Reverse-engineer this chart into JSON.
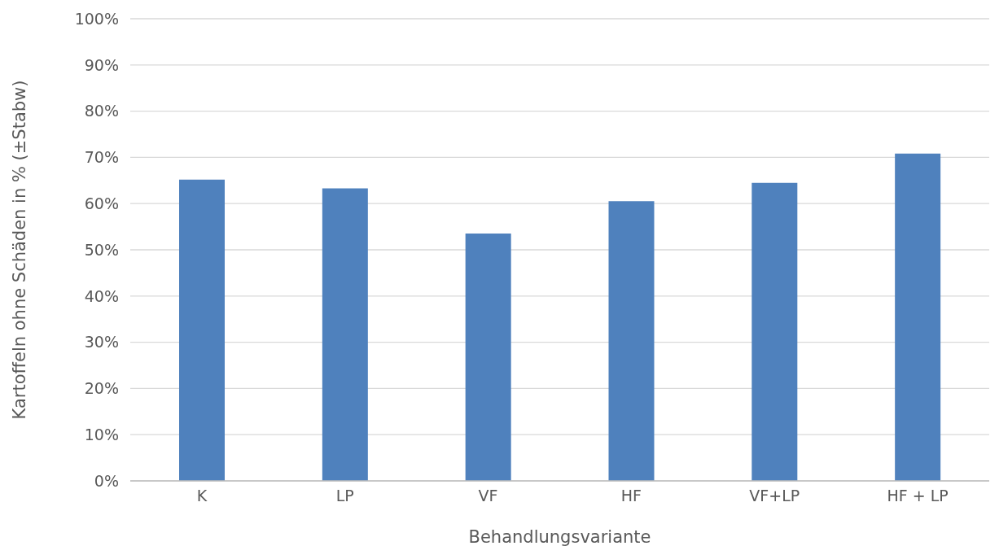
{
  "chart_data": {
    "type": "bar",
    "xlabel": "Behandlungsvariante",
    "ylabel": "Kartoffeln ohne Schäden in % (±Stabw)",
    "categories": [
      "K",
      "LP",
      "VF",
      "HF",
      "VF+LP",
      "HF + LP"
    ],
    "values": [
      65.2,
      63.3,
      53.5,
      60.5,
      64.5,
      70.8
    ],
    "color": "#4f81bd",
    "ylim": [
      0,
      100
    ],
    "yticks": [
      {
        "value": 0,
        "label": "0%"
      },
      {
        "value": 10,
        "label": "10%"
      },
      {
        "value": 20,
        "label": "20%"
      },
      {
        "value": 30,
        "label": "30%"
      },
      {
        "value": 40,
        "label": "40%"
      },
      {
        "value": 50,
        "label": "50%"
      },
      {
        "value": 60,
        "label": "60%"
      },
      {
        "value": 70,
        "label": "70%"
      },
      {
        "value": 80,
        "label": "80%"
      },
      {
        "value": 90,
        "label": "90%"
      },
      {
        "value": 100,
        "label": "100%"
      }
    ],
    "grid": "y",
    "legend": false
  }
}
